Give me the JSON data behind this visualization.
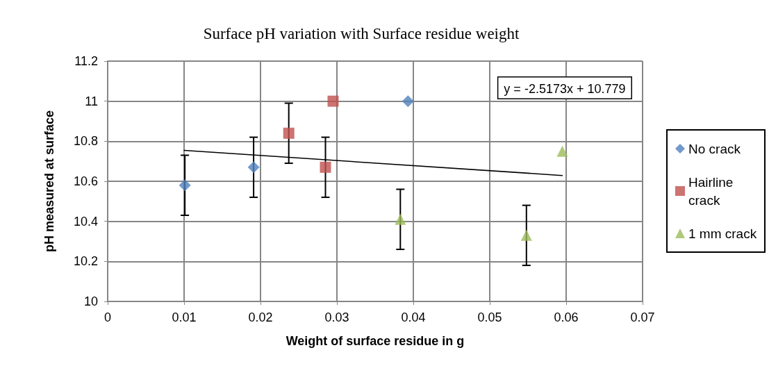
{
  "chart_data": {
    "type": "scatter",
    "title": "Surface pH variation with Surface residue weight",
    "xlabel": "Weight of surface residue in g",
    "ylabel": "pH measured at surface",
    "xlim": [
      0,
      0.07
    ],
    "xticks": [
      0,
      0.01,
      0.02,
      0.03,
      0.04,
      0.05,
      0.06,
      0.07
    ],
    "ylim": [
      10,
      11.2
    ],
    "yticks": [
      10,
      10.2,
      10.4,
      10.6,
      10.8,
      11,
      11.2
    ],
    "grid": true,
    "legend": "right",
    "annotations": [
      "y = -2.5173x + 10.779"
    ],
    "series": [
      {
        "name": "No crack",
        "color": "#4f81bd",
        "marker": "diamond",
        "x": [
          0.0101,
          0.0191,
          0.0393
        ],
        "values": [
          10.58,
          10.67,
          11.0
        ],
        "errors": [
          0.15,
          0.15,
          null
        ]
      },
      {
        "name": "Hairline crack",
        "color": "#c0504d",
        "marker": "square",
        "x": [
          0.0237,
          0.0285,
          0.0295
        ],
        "values": [
          10.84,
          10.67,
          11.0
        ],
        "errors": [
          0.15,
          0.15,
          null
        ]
      },
      {
        "name": "1 mm crack",
        "color": "#9bbb59",
        "marker": "triangle",
        "x": [
          0.0383,
          0.0548,
          0.0595
        ],
        "values": [
          10.41,
          10.33,
          10.75
        ],
        "errors": [
          0.15,
          0.15,
          null
        ]
      },
      {
        "type": "line",
        "color": "#000000",
        "marker": "none",
        "x": [
          0.01,
          0.0595
        ],
        "values": [
          10.754,
          10.629
        ]
      }
    ]
  }
}
